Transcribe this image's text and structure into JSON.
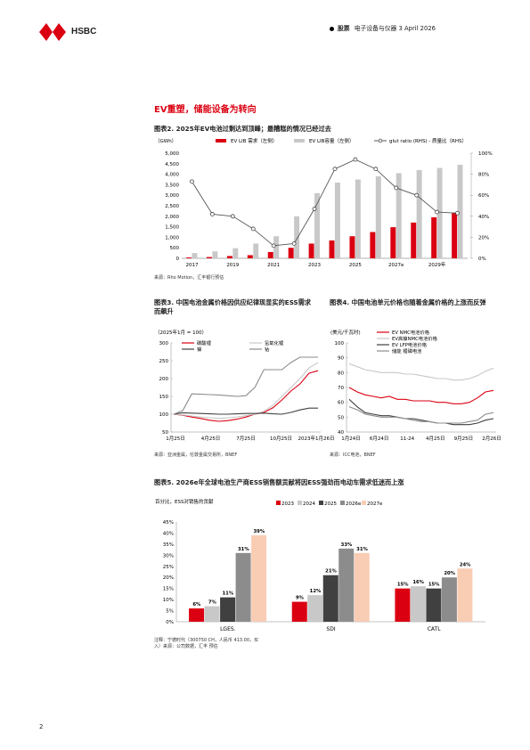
{
  "header": {
    "brand": "HSBC",
    "category": "股票",
    "subtitle": "电子设备与仪器 3 April 2026"
  },
  "section_title": "EV重塑，储能设备为转向",
  "page_number": "2",
  "colors": {
    "red": "#db0011",
    "grey_light": "#c8c8c8",
    "grey_mid": "#8c8c8c",
    "grey_dark": "#404040",
    "peach": "#f9ccb4"
  },
  "fig2": {
    "title": "图表2. 2025年EV电池过剩达到顶峰；最糟糕的情况已经过去",
    "source": "来源：Rho Motion，汇丰银行预估",
    "chart_data": {
      "type": "bar",
      "unit": "（GWh）",
      "categories": [
        "2017",
        "2018",
        "2019",
        "2020",
        "2021",
        "2022",
        "2023",
        "2024",
        "2025",
        "2026e",
        "2027e",
        "2028e",
        "2029e",
        "2030e"
      ],
      "tick_labels": [
        "2017",
        "",
        "2019",
        "",
        "2021",
        "",
        "2023",
        "",
        "2025",
        "",
        "2027e",
        "",
        "2029年",
        ""
      ],
      "y_ticks": [
        "0",
        "500",
        "1,000",
        "1,500",
        "2,000",
        "2,500",
        "3,000",
        "3,500",
        "4,000",
        "4,500",
        "5,000"
      ],
      "y2_ticks": [
        "0%",
        "20%",
        "40%",
        "60%",
        "80%",
        "100%"
      ],
      "ylim": [
        0,
        5000
      ],
      "y2lim": [
        0,
        100
      ],
      "series": [
        {
          "name": "EV LIB 需求（左侧）",
          "type": "bar",
          "values": [
            40,
            60,
            110,
            150,
            300,
            500,
            700,
            850,
            1050,
            1250,
            1480,
            1700,
            1950,
            2150
          ]
        },
        {
          "name": "EV LIB容量（左侧）",
          "type": "bar",
          "values": [
            250,
            330,
            480,
            700,
            1050,
            2000,
            3100,
            3600,
            3750,
            3900,
            4050,
            4200,
            4300,
            4450
          ]
        },
        {
          "name": "glut ratio (RHS) - 质量比（RHS）",
          "type": "line",
          "values": [
            73,
            42,
            40,
            28,
            12,
            14,
            47,
            85,
            94,
            85,
            67,
            60,
            44,
            43
          ]
        }
      ]
    }
  },
  "fig3": {
    "title": "图表3. 中国电池金属价格因供应纪律现显实的ESS需求而飙升",
    "source": "来源：亚洲金属，伦敦金属交易所，BNEF",
    "chart_data": {
      "type": "line",
      "unit": "（2025年1月 = 100）",
      "x_labels": [
        "1月25日",
        "4月25日",
        "7月25日",
        "10月25日",
        "2023年1月26日"
      ],
      "y_ticks": [
        "50",
        "100",
        "150",
        "200",
        "250",
        "300"
      ],
      "ylim": [
        50,
        300
      ],
      "series": [
        {
          "name": "碳酸锂",
          "color": "#db0011",
          "values": [
            100,
            97,
            92,
            88,
            83,
            80,
            82,
            86,
            92,
            100,
            105,
            118,
            140,
            165,
            185,
            215,
            222
          ]
        },
        {
          "name": "氢氧化锂",
          "color": "#c8c8c8",
          "values": [
            100,
            98,
            95,
            92,
            90,
            88,
            90,
            92,
            96,
            100,
            108,
            125,
            150,
            175,
            200,
            230,
            245
          ]
        },
        {
          "name": "镍",
          "color": "#404040",
          "values": [
            100,
            104,
            103,
            102,
            101,
            100,
            100,
            101,
            102,
            102,
            103,
            101,
            100,
            105,
            112,
            117,
            117
          ]
        },
        {
          "name": "钴",
          "color": "#8c8c8c",
          "values": [
            100,
            110,
            157,
            156,
            155,
            154,
            152,
            150,
            152,
            175,
            225,
            225,
            225,
            245,
            260,
            260,
            260
          ]
        }
      ]
    }
  },
  "fig4": {
    "title": "图表4. 中国电池单元价格也随着金属价格的上涨而反弹",
    "source": "来源：ICC电池，BNEF",
    "chart_data": {
      "type": "line",
      "unit": "(美元/千瓦时)",
      "x_labels": [
        "1月24日",
        "6月24日",
        "11-24",
        "4月25日",
        "9月25日",
        "2月26日"
      ],
      "y_ticks": [
        "40",
        "50",
        "60",
        "70",
        "80",
        "90",
        "100"
      ],
      "ylim": [
        40,
        100
      ],
      "series": [
        {
          "name": "EV NMC电池价格",
          "color": "#db0011",
          "values": [
            70,
            67,
            65,
            64,
            63,
            64,
            62,
            62,
            61,
            61,
            61,
            60,
            60,
            59,
            59,
            60,
            63,
            67,
            68
          ]
        },
        {
          "name": "EV高镍NMC电池价格",
          "color": "#c8c8c8",
          "values": [
            86,
            84,
            82,
            81,
            80,
            80,
            80,
            79,
            79,
            78,
            77,
            76,
            76,
            75,
            75,
            76,
            78,
            81,
            83
          ]
        },
        {
          "name": "EV LFP电池价格",
          "color": "#404040",
          "values": [
            62,
            57,
            53,
            52,
            51,
            51,
            50,
            49,
            49,
            48,
            47,
            46,
            46,
            45,
            45,
            45,
            46,
            48,
            49
          ]
        },
        {
          "name": "储能 锂磷电池",
          "color": "#8c8c8c",
          "values": [
            57,
            55,
            52,
            51,
            50,
            50,
            50,
            49,
            48,
            47,
            47,
            46,
            46,
            46,
            46,
            47,
            48,
            52,
            53
          ]
        }
      ]
    }
  },
  "fig5": {
    "title": "图表5. 2026e年全球电池生产商ESS销售额贡献将因ESS强劲而电动车需求低迷而上涨",
    "source": "注释：宁德时代（300750 CH，人民币 413.00，买入）来源：公司数据，汇丰 预估",
    "chart_data": {
      "type": "bar",
      "unit": "百分比，ESS对销售的贡献",
      "categories": [
        "LGES.",
        "SDI",
        "CATL"
      ],
      "y_ticks": [
        "0%",
        "5%",
        "10%",
        "15%",
        "20%",
        "25%",
        "30%",
        "35%",
        "40%",
        "45%"
      ],
      "ylim": [
        0,
        45
      ],
      "series": [
        {
          "name": "2023",
          "color": "#db0011",
          "values": [
            6,
            9,
            15
          ]
        },
        {
          "name": "2024",
          "color": "#c8c8c8",
          "values": [
            7,
            12,
            16
          ]
        },
        {
          "name": "2025",
          "color": "#404040",
          "values": [
            11,
            21,
            15
          ]
        },
        {
          "name": "2026e",
          "color": "#8c8c8c",
          "values": [
            31,
            33,
            20
          ]
        },
        {
          "name": "2027e",
          "color": "#f9ccb4",
          "values": [
            39,
            31,
            24
          ]
        }
      ],
      "data_labels": [
        [
          "6%",
          "7%",
          "11%",
          "31%",
          "39%"
        ],
        [
          "9%",
          "12%",
          "21%",
          "33%",
          "31%"
        ],
        [
          "15%",
          "16%",
          "15%",
          "20%",
          "24%"
        ]
      ]
    }
  }
}
